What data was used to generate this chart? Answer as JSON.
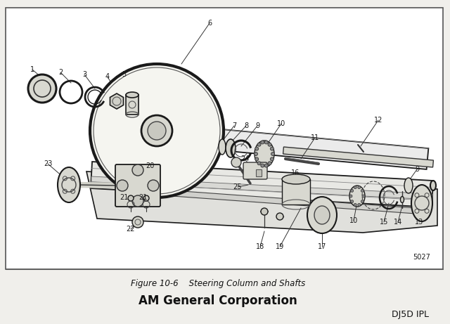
{
  "figure_title": "Figure 10-6    Steering Column and Shafts",
  "company": "AM General Corporation",
  "doc_ref": "DJ5D IPL",
  "part_number": "5027",
  "bg_color": "#ffffff",
  "line_color": "#1a1a1a",
  "text_color": "#1a1a1a",
  "fig_bg": "#f0efeb"
}
